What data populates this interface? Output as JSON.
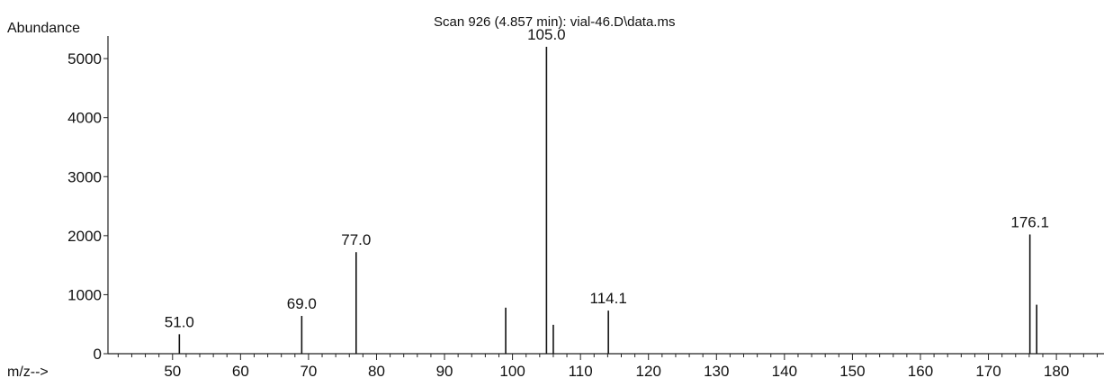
{
  "chart_data": {
    "type": "bar",
    "title": "Scan 926 (4.857 min): vial-46.D\\data.ms",
    "xlabel": "m/z-->",
    "ylabel": "Abundance",
    "xlim": [
      40.5,
      187
    ],
    "ylim": [
      0,
      5200
    ],
    "x_ticks": [
      50,
      60,
      70,
      80,
      90,
      100,
      110,
      120,
      130,
      140,
      150,
      160,
      170,
      180
    ],
    "y_ticks": [
      0,
      1000,
      2000,
      3000,
      4000,
      5000
    ],
    "grid": false,
    "series": [
      {
        "x": [
          51.0,
          69.0,
          77.0,
          99.0,
          105.0,
          106.0,
          114.1,
          176.1,
          177.1
        ],
        "values": [
          330,
          640,
          1720,
          780,
          5200,
          490,
          730,
          2020,
          830
        ]
      }
    ],
    "peak_labels": [
      {
        "x": 51.0,
        "y": 330,
        "text": "51.0"
      },
      {
        "x": 69.0,
        "y": 640,
        "text": "69.0"
      },
      {
        "x": 77.0,
        "y": 1720,
        "text": "77.0"
      },
      {
        "x": 105.0,
        "y": 5200,
        "text": "105.0"
      },
      {
        "x": 114.1,
        "y": 730,
        "text": "114.1"
      },
      {
        "x": 176.1,
        "y": 2020,
        "text": "176.1"
      }
    ],
    "colors": {
      "line": "#111111",
      "axis": "#222222"
    }
  }
}
